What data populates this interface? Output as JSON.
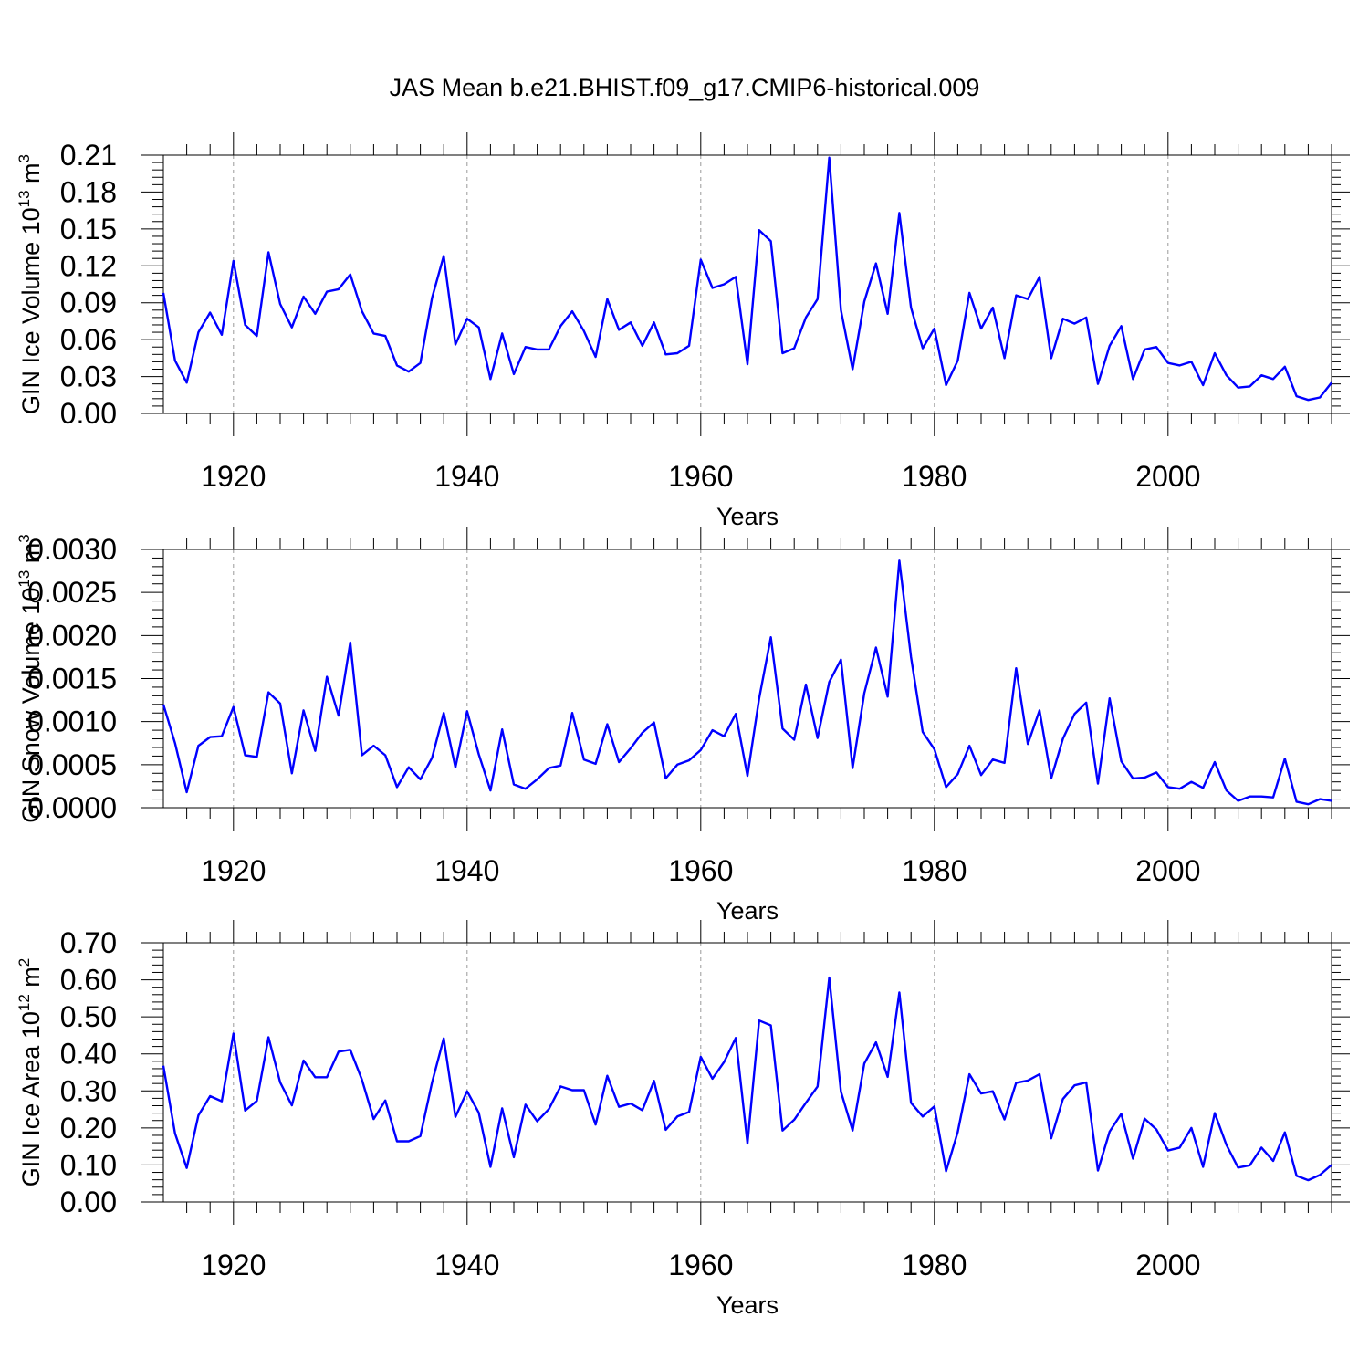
{
  "title": "JAS Mean b.e21.BHIST.f09_g17.CMIP6-historical.009",
  "line_color": "#0000ff",
  "grid_color": "#999999",
  "chart_data": [
    {
      "type": "line",
      "series_name": "GIN Ice Volume",
      "ylabel_main": "GIN Ice Volume 10",
      "ylabel_exp": "13",
      "ylabel_unit": " m",
      "ylabel_unit_exp": "3",
      "xlabel": "Years",
      "xlim": [
        1914,
        2014
      ],
      "ylim": [
        0,
        0.21
      ],
      "x_ticks": [
        1920,
        1940,
        1960,
        1980,
        2000
      ],
      "x_tick_labels": [
        "1920",
        "1940",
        "1960",
        "1980",
        "2000"
      ],
      "y_ticks": [
        0,
        0.03,
        0.06,
        0.09,
        0.12,
        0.15,
        0.18,
        0.21
      ],
      "y_tick_labels": [
        "0.00",
        "0.03",
        "0.06",
        "0.09",
        "0.12",
        "0.15",
        "0.18",
        "0.21"
      ],
      "x_start": 1914,
      "values": [
        0.098,
        0.043,
        0.025,
        0.066,
        0.082,
        0.064,
        0.124,
        0.072,
        0.063,
        0.131,
        0.089,
        0.07,
        0.095,
        0.081,
        0.099,
        0.101,
        0.113,
        0.083,
        0.065,
        0.063,
        0.039,
        0.034,
        0.041,
        0.094,
        0.128,
        0.056,
        0.077,
        0.07,
        0.028,
        0.065,
        0.032,
        0.054,
        0.052,
        0.052,
        0.071,
        0.083,
        0.067,
        0.046,
        0.093,
        0.068,
        0.074,
        0.055,
        0.074,
        0.048,
        0.049,
        0.055,
        0.125,
        0.102,
        0.105,
        0.111,
        0.04,
        0.149,
        0.14,
        0.049,
        0.053,
        0.078,
        0.093,
        0.208,
        0.084,
        0.036,
        0.091,
        0.122,
        0.081,
        0.163,
        0.086,
        0.053,
        0.069,
        0.023,
        0.043,
        0.098,
        0.069,
        0.086,
        0.045,
        0.096,
        0.093,
        0.111,
        0.045,
        0.077,
        0.073,
        0.078,
        0.024,
        0.055,
        0.071,
        0.028,
        0.052,
        0.054,
        0.041,
        0.039,
        0.042,
        0.023,
        0.049,
        0.031,
        0.021,
        0.022,
        0.031,
        0.028,
        0.038,
        0.014,
        0.011,
        0.013,
        0.025
      ]
    },
    {
      "type": "line",
      "series_name": "GIN Snow Volume",
      "ylabel_main": "GIN Snow Volume 10",
      "ylabel_exp": "13",
      "ylabel_unit": " m",
      "ylabel_unit_exp": "3",
      "xlabel": "Years",
      "xlim": [
        1914,
        2014
      ],
      "ylim": [
        0,
        0.003
      ],
      "x_ticks": [
        1920,
        1940,
        1960,
        1980,
        2000
      ],
      "x_tick_labels": [
        "1920",
        "1940",
        "1960",
        "1980",
        "2000"
      ],
      "y_ticks": [
        0,
        0.0005,
        0.001,
        0.0015,
        0.002,
        0.0025,
        0.003
      ],
      "y_tick_labels": [
        "0.0000",
        "0.0005",
        "0.0010",
        "0.0015",
        "0.0020",
        "0.0025",
        "0.0030"
      ],
      "x_start": 1914,
      "values": [
        0.0012,
        0.00075,
        0.00018,
        0.00072,
        0.00082,
        0.00083,
        0.00117,
        0.00061,
        0.00059,
        0.00134,
        0.00121,
        0.0004,
        0.00113,
        0.00066,
        0.00152,
        0.00107,
        0.00192,
        0.00061,
        0.00072,
        0.00061,
        0.00024,
        0.00047,
        0.00033,
        0.00058,
        0.0011,
        0.00047,
        0.00112,
        0.00062,
        0.0002,
        0.00091,
        0.00027,
        0.00022,
        0.00033,
        0.00046,
        0.00049,
        0.0011,
        0.00056,
        0.00051,
        0.00097,
        0.00053,
        0.00069,
        0.00087,
        0.00099,
        0.00034,
        0.0005,
        0.00055,
        0.00067,
        0.0009,
        0.00083,
        0.00109,
        0.00037,
        0.00127,
        0.00198,
        0.00092,
        0.00079,
        0.00143,
        0.00081,
        0.00146,
        0.00172,
        0.00046,
        0.00133,
        0.00186,
        0.00129,
        0.00287,
        0.00175,
        0.00088,
        0.00068,
        0.00024,
        0.00039,
        0.00072,
        0.00038,
        0.00056,
        0.00052,
        0.00162,
        0.00074,
        0.00113,
        0.00034,
        0.0008,
        0.00109,
        0.00122,
        0.00028,
        0.00127,
        0.00054,
        0.00034,
        0.00035,
        0.00041,
        0.00024,
        0.00022,
        0.0003,
        0.00023,
        0.00053,
        0.0002,
        8e-05,
        0.00013,
        0.00013,
        0.00012,
        0.00057,
        7e-05,
        4e-05,
        0.0001,
        8e-05
      ]
    },
    {
      "type": "line",
      "series_name": "GIN Ice Area",
      "ylabel_main": "GIN Ice Area 10",
      "ylabel_exp": "12",
      "ylabel_unit": " m",
      "ylabel_unit_exp": "2",
      "xlabel": "Years",
      "xlim": [
        1914,
        2014
      ],
      "ylim": [
        0,
        0.7
      ],
      "x_ticks": [
        1920,
        1940,
        1960,
        1980,
        2000
      ],
      "x_tick_labels": [
        "1920",
        "1940",
        "1960",
        "1980",
        "2000"
      ],
      "y_ticks": [
        0,
        0.1,
        0.2,
        0.3,
        0.4,
        0.5,
        0.6,
        0.7
      ],
      "y_tick_labels": [
        "0.00",
        "0.10",
        "0.20",
        "0.30",
        "0.40",
        "0.50",
        "0.60",
        "0.70"
      ],
      "x_start": 1914,
      "values": [
        0.368,
        0.185,
        0.092,
        0.234,
        0.286,
        0.272,
        0.455,
        0.247,
        0.273,
        0.445,
        0.323,
        0.261,
        0.382,
        0.337,
        0.337,
        0.406,
        0.411,
        0.33,
        0.224,
        0.274,
        0.164,
        0.164,
        0.178,
        0.323,
        0.442,
        0.23,
        0.299,
        0.241,
        0.095,
        0.253,
        0.121,
        0.263,
        0.218,
        0.251,
        0.312,
        0.302,
        0.302,
        0.209,
        0.341,
        0.257,
        0.266,
        0.248,
        0.327,
        0.195,
        0.231,
        0.243,
        0.392,
        0.333,
        0.378,
        0.443,
        0.158,
        0.49,
        0.477,
        0.193,
        0.222,
        0.268,
        0.312,
        0.606,
        0.298,
        0.193,
        0.374,
        0.431,
        0.338,
        0.566,
        0.268,
        0.231,
        0.258,
        0.083,
        0.189,
        0.345,
        0.293,
        0.299,
        0.223,
        0.322,
        0.328,
        0.345,
        0.172,
        0.278,
        0.315,
        0.323,
        0.085,
        0.19,
        0.238,
        0.117,
        0.225,
        0.196,
        0.139,
        0.147,
        0.2,
        0.095,
        0.24,
        0.154,
        0.093,
        0.099,
        0.147,
        0.111,
        0.188,
        0.071,
        0.059,
        0.073,
        0.1
      ]
    }
  ]
}
